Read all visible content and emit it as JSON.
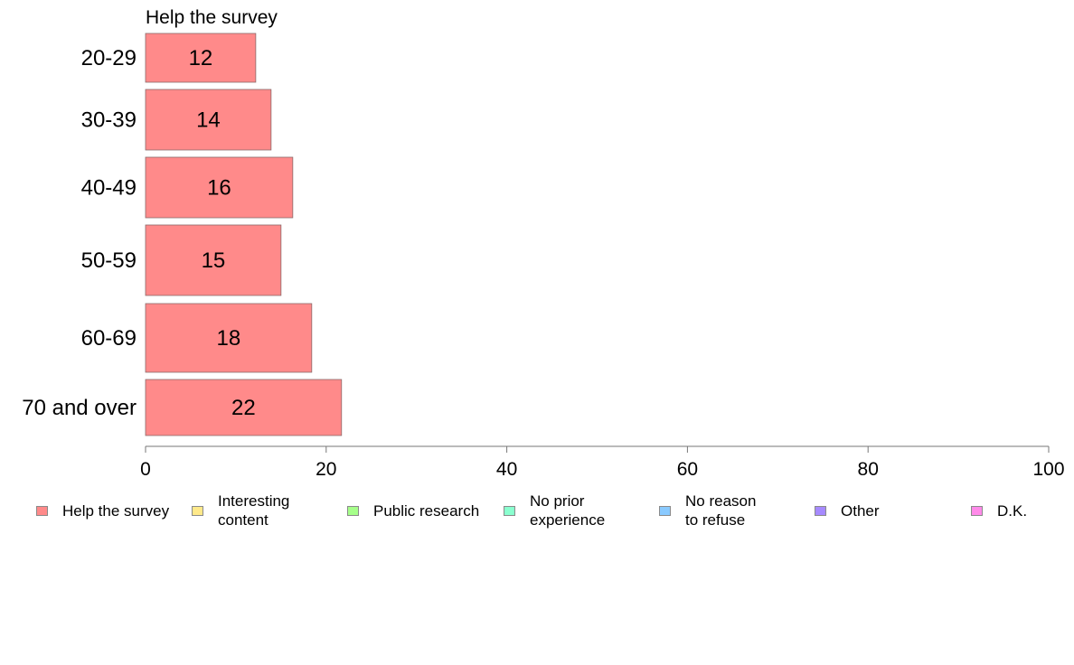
{
  "chart_data": {
    "type": "bar",
    "orientation": "horizontal",
    "title": "Help the survey",
    "categories": [
      "20-29",
      "30-39",
      "40-49",
      "50-59",
      "60-69",
      "70 and over"
    ],
    "series": [
      {
        "name": "Help the survey",
        "values": [
          12.2,
          13.9,
          16.3,
          15.0,
          18.4,
          21.7
        ],
        "labels": [
          "12",
          "14",
          "16",
          "15",
          "18",
          "22"
        ]
      }
    ],
    "xlim": [
      0,
      100
    ],
    "xticks": [
      "0",
      "20",
      "40",
      "60",
      "80",
      "100"
    ],
    "grid": false,
    "bar_color": "#ff8a8a",
    "legend_position": "bottom"
  },
  "legend": {
    "items": [
      {
        "label": "Help the survey",
        "color": "#ff8a8a"
      },
      {
        "label": "Interesting\ncontent",
        "color": "#ffe98a"
      },
      {
        "label": "Public research",
        "color": "#a6ff8a"
      },
      {
        "label": "No prior\nexperience",
        "color": "#8affcf"
      },
      {
        "label": "No reason\nto refuse",
        "color": "#8acaff"
      },
      {
        "label": "Other",
        "color": "#a68aff"
      },
      {
        "label": "D.K.",
        "color": "#ff8ae9"
      }
    ]
  }
}
